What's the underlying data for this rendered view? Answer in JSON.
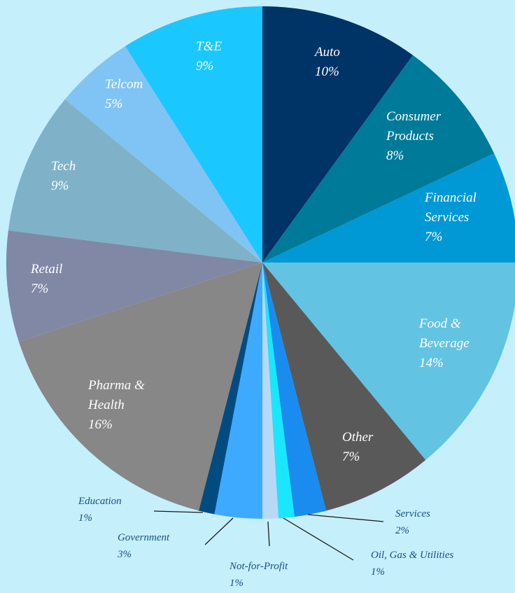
{
  "chart_data": {
    "type": "pie",
    "categories": [
      "Auto",
      "Consumer Products",
      "Financial Services",
      "Food & Beverage",
      "Other",
      "Services",
      "Oil, Gas & Utilities",
      "Not-for-Profit",
      "Government",
      "Education",
      "Pharma & Health",
      "Retail",
      "Tech",
      "Telcom",
      "T&E"
    ],
    "values": [
      10,
      8,
      7,
      14,
      7,
      2,
      1,
      1,
      3,
      1,
      16,
      7,
      9,
      5,
      9
    ],
    "value_labels": [
      "10%",
      "8%",
      "7%",
      "14%",
      "7%",
      "2%",
      "1%",
      "1%",
      "3%",
      "1%",
      "16%",
      "7%",
      "9%",
      "5%",
      "9%"
    ],
    "colors": [
      "#003366",
      "#007a99",
      "#0099d6",
      "#63c3e3",
      "#595959",
      "#1a8cf0",
      "#1ae6ff",
      "#b8d9f5",
      "#3daaff",
      "#004c80",
      "#878787",
      "#8088a6",
      "#7fb2c8",
      "#80c4f5",
      "#1ac8ff"
    ]
  }
}
